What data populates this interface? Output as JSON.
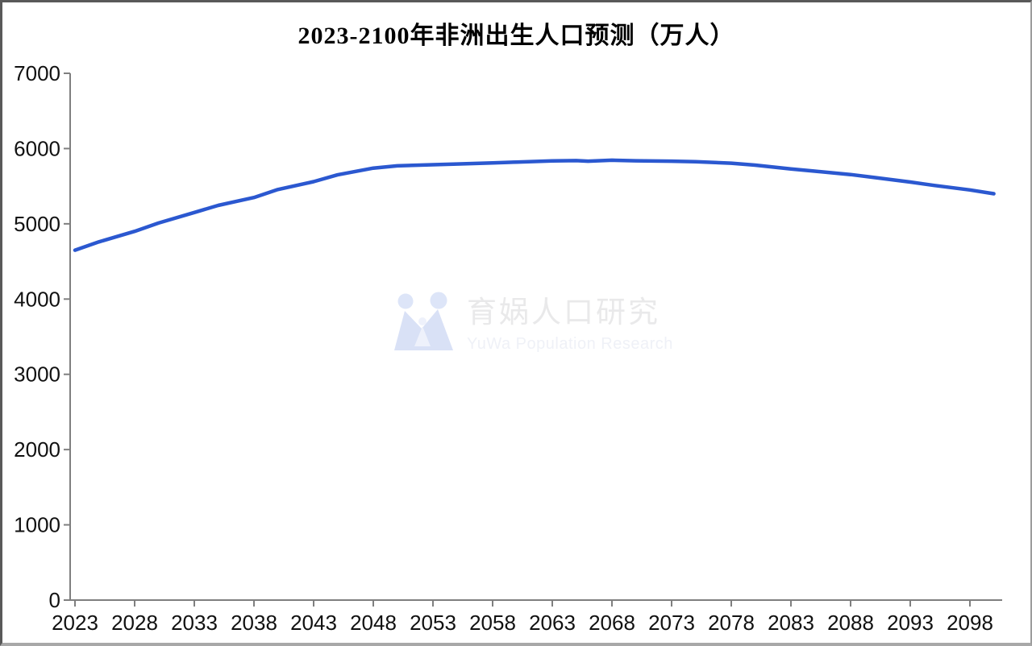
{
  "window": {
    "background": "#ffffff",
    "frame_border_dark": "#595959",
    "frame_border_light": "#a8a8a8"
  },
  "chart_data": {
    "type": "line",
    "title": "2023-2100年非洲出生人口预测（万人）",
    "xlabel": "",
    "ylabel": "",
    "xlim": [
      2023,
      2101
    ],
    "ylim": [
      0,
      7000
    ],
    "grid": false,
    "legend": "none",
    "axis_color": "#7f7f7f",
    "tick_label_color": "#111111",
    "x_ticks": [
      2023,
      2028,
      2033,
      2038,
      2043,
      2048,
      2053,
      2058,
      2063,
      2068,
      2073,
      2078,
      2083,
      2088,
      2093,
      2098
    ],
    "y_ticks": [
      0,
      1000,
      2000,
      3000,
      4000,
      5000,
      6000,
      7000
    ],
    "series": [
      {
        "name": "非洲出生人口预测",
        "color": "#2b58d0",
        "points": [
          [
            2023,
            4650
          ],
          [
            2025,
            4760
          ],
          [
            2028,
            4900
          ],
          [
            2030,
            5010
          ],
          [
            2033,
            5150
          ],
          [
            2035,
            5245
          ],
          [
            2038,
            5350
          ],
          [
            2040,
            5455
          ],
          [
            2043,
            5560
          ],
          [
            2045,
            5650
          ],
          [
            2048,
            5740
          ],
          [
            2050,
            5770
          ],
          [
            2053,
            5785
          ],
          [
            2055,
            5795
          ],
          [
            2058,
            5810
          ],
          [
            2060,
            5820
          ],
          [
            2063,
            5835
          ],
          [
            2065,
            5840
          ],
          [
            2066,
            5832
          ],
          [
            2068,
            5845
          ],
          [
            2070,
            5838
          ],
          [
            2073,
            5832
          ],
          [
            2075,
            5825
          ],
          [
            2078,
            5805
          ],
          [
            2080,
            5780
          ],
          [
            2083,
            5730
          ],
          [
            2085,
            5700
          ],
          [
            2088,
            5655
          ],
          [
            2090,
            5615
          ],
          [
            2093,
            5555
          ],
          [
            2095,
            5510
          ],
          [
            2098,
            5450
          ],
          [
            2100,
            5400
          ]
        ]
      }
    ]
  },
  "watermark": {
    "cn_text": "育娲人口研究",
    "en_text": "YuWa Population Research",
    "cn_color": "#e9e9ea",
    "en_color": "#eff1f7",
    "logo_body_color": "#d9e1f6",
    "logo_head_color": "#dde5f8",
    "logo_child_color": "#eef1fb"
  }
}
